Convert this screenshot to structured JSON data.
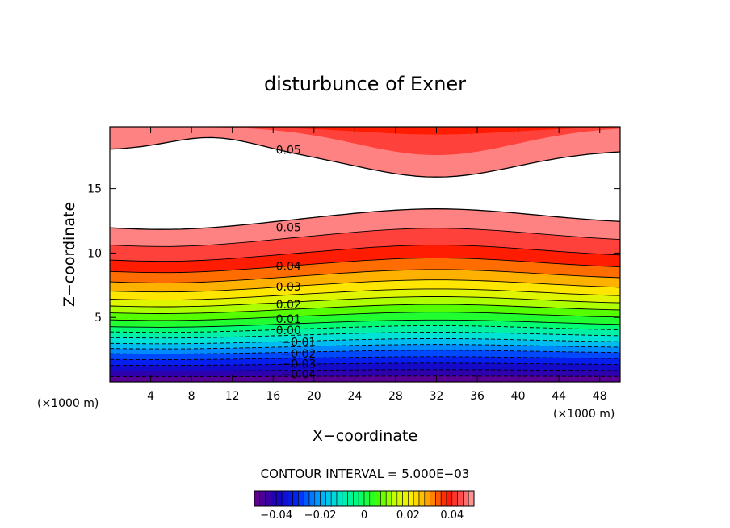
{
  "chart_data": {
    "type": "contour",
    "title": "disturbunce of Exner",
    "xlabel": "X−coordinate",
    "ylabel": "Z−coordinate",
    "x_unit_left": "(×1000 m)",
    "x_unit_right": "(×1000 m)",
    "xlim": [
      0,
      50
    ],
    "ylim": [
      0,
      19.8
    ],
    "x_ticks": [
      4,
      8,
      12,
      16,
      20,
      24,
      28,
      32,
      36,
      40,
      44,
      48
    ],
    "y_ticks": [
      5,
      10,
      15
    ],
    "contour_interval_text": "CONTOUR INTERVAL = 5.000E−03",
    "contour_interval": 0.005,
    "color_range": [
      -0.05,
      0.05
    ],
    "colorbar_ticks": [
      "−0.04",
      "−0.02",
      "0",
      "0.02",
      "0.04"
    ],
    "colorbar_tick_values": [
      -0.04,
      -0.02,
      0,
      0.02,
      0.04
    ],
    "contour_labels": [
      {
        "text": "0.05",
        "x": 17.5,
        "y": 18.0
      },
      {
        "text": "0.05",
        "x": 17.5,
        "y": 12.0
      },
      {
        "text": "0.04",
        "x": 17.5,
        "y": 9.0
      },
      {
        "text": "0.03",
        "x": 17.5,
        "y": 7.4
      },
      {
        "text": "0.02",
        "x": 17.5,
        "y": 6.0
      },
      {
        "text": "0.01",
        "x": 17.5,
        "y": 4.9
      },
      {
        "text": "0.00",
        "x": 17.5,
        "y": 4.0
      },
      {
        "text": "−0.01",
        "x": 18.5,
        "y": 3.1
      },
      {
        "text": "−0.02",
        "x": 18.5,
        "y": 2.2
      },
      {
        "text": "−0.03",
        "x": 18.5,
        "y": 1.4
      },
      {
        "text": "−0.04",
        "x": 18.5,
        "y": 0.6
      }
    ],
    "field_levels": [
      {
        "value": -0.05,
        "z_at_x30": 0.0
      },
      {
        "value": -0.045,
        "z_at_x30": 0.45
      },
      {
        "value": -0.04,
        "z_at_x30": 0.95
      },
      {
        "value": -0.035,
        "z_at_x30": 1.45
      },
      {
        "value": -0.03,
        "z_at_x30": 1.95
      },
      {
        "value": -0.025,
        "z_at_x30": 2.45
      },
      {
        "value": -0.02,
        "z_at_x30": 2.9
      },
      {
        "value": -0.015,
        "z_at_x30": 3.35
      },
      {
        "value": -0.01,
        "z_at_x30": 3.85
      },
      {
        "value": -0.005,
        "z_at_x30": 4.35
      },
      {
        "value": 0.0,
        "z_at_x30": 4.8
      },
      {
        "value": 0.005,
        "z_at_x30": 5.4
      },
      {
        "value": 0.01,
        "z_at_x30": 6.0
      },
      {
        "value": 0.015,
        "z_at_x30": 6.6
      },
      {
        "value": 0.02,
        "z_at_x30": 7.2
      },
      {
        "value": 0.025,
        "z_at_x30": 7.9
      },
      {
        "value": 0.03,
        "z_at_x30": 8.7
      },
      {
        "value": 0.035,
        "z_at_x30": 9.6
      },
      {
        "value": 0.04,
        "z_at_x30": 10.6
      },
      {
        "value": 0.045,
        "z_at_x30": 11.9
      },
      {
        "value": 0.05,
        "z_at_x30": 13.4
      }
    ],
    "upper_levels": [
      {
        "value": 0.05,
        "z_min": 15.9,
        "z_max": 19.0
      },
      {
        "value": 0.045,
        "z_min": 17.6,
        "z_max": 19.8
      },
      {
        "value": 0.04,
        "z_min": 19.2,
        "z_max": 19.8
      }
    ]
  }
}
